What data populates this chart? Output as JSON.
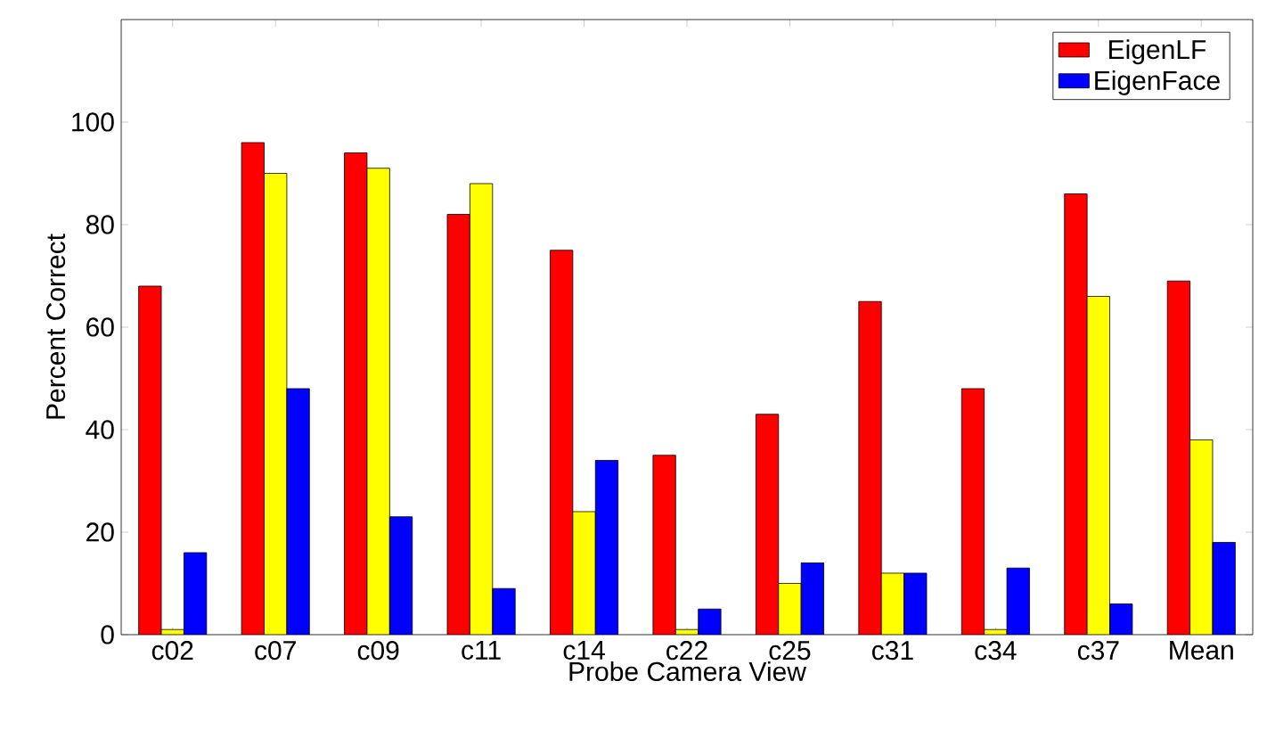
{
  "chart_data": {
    "type": "bar",
    "xlabel": "Probe Camera View",
    "ylabel": "Percent Correct",
    "categories": [
      "c02",
      "c07",
      "c09",
      "c11",
      "c14",
      "c22",
      "c25",
      "c31",
      "c34",
      "c37",
      "Mean"
    ],
    "series": [
      {
        "name": "EigenLF",
        "color": "#ff0000",
        "values": [
          68,
          96,
          94,
          82,
          75,
          35,
          43,
          65,
          48,
          86,
          69
        ]
      },
      {
        "color": "#ffff00",
        "values": [
          1,
          90,
          91,
          88,
          24,
          1,
          10,
          12,
          1,
          66,
          38
        ]
      },
      {
        "name": "EigenFace",
        "color": "#0000ff",
        "values": [
          16,
          48,
          23,
          9,
          34,
          5,
          14,
          12,
          13,
          6,
          18
        ]
      }
    ],
    "ylim": [
      0,
      120
    ],
    "yticks": [
      0,
      20,
      40,
      60,
      80,
      100
    ],
    "grid": false,
    "legend": "top right"
  }
}
